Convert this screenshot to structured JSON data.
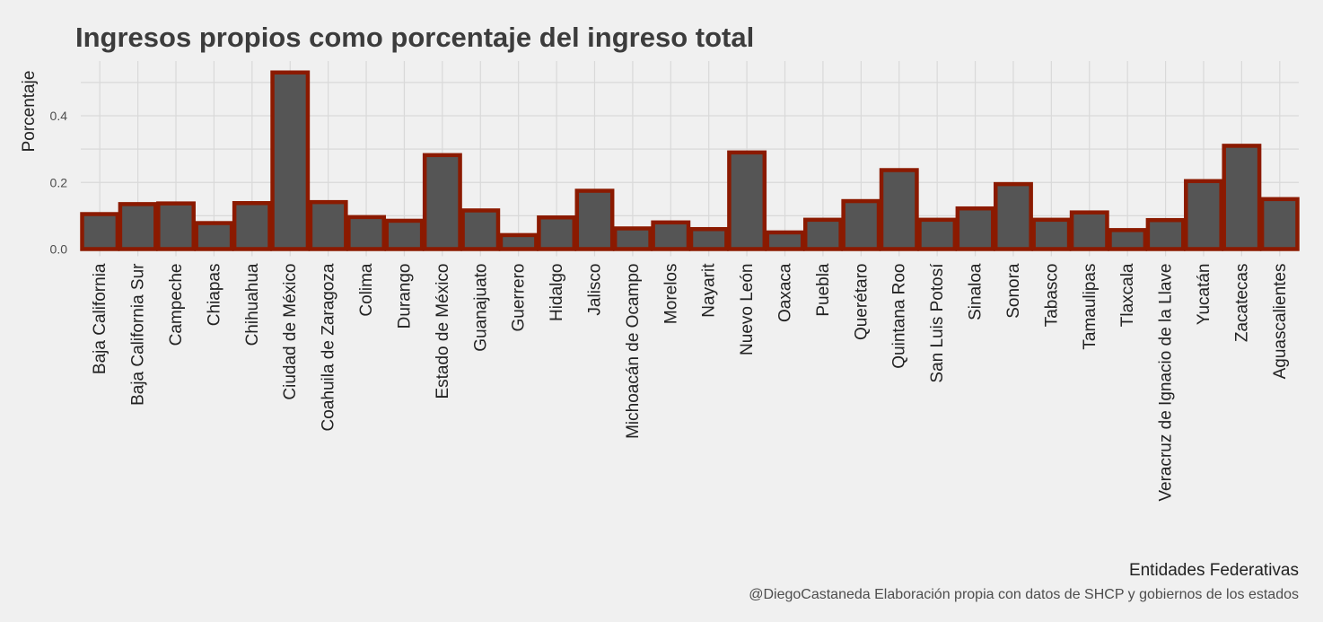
{
  "chart_data": {
    "type": "bar",
    "title": "Ingresos propios como porcentaje del ingreso total",
    "xlabel": "Entidades Federativas",
    "ylabel": "Porcentaje",
    "caption": "@DiegoCastaneda Elaboración propia con datos de SHCP y gobiernos de los estados",
    "ylim": [
      0,
      0.54
    ],
    "yticks": [
      0.0,
      0.2,
      0.4
    ],
    "ytick_labels": [
      "0.0",
      "0.2",
      "0.4"
    ],
    "grid": true,
    "colors": {
      "fill": "#555555",
      "outline": "#8b1a00",
      "background": "#f0f0f0",
      "grid": "#d9d9d9"
    },
    "categories": [
      "Baja California",
      "Baja California Sur",
      "Campeche",
      "Chiapas",
      "Chihuahua",
      "Ciudad de México",
      "Coahuila de Zaragoza",
      "Colima",
      "Durango",
      "Estado de México",
      "Guanajuato",
      "Guerrero",
      "Hidalgo",
      "Jalisco",
      "Michoacán de Ocampo",
      "Morelos",
      "Nayarit",
      "Nuevo León",
      "Oaxaca",
      "Puebla",
      "Querétaro",
      "Quintana Roo",
      "San Luis Potosí",
      "Sinaloa",
      "Sonora",
      "Tabasco",
      "Tamaulipas",
      "Tlaxcala",
      "Veracruz de Ignacio de la Llave",
      "Yucatán",
      "Zacatecas",
      "Aguascalientes"
    ],
    "values": [
      0.105,
      0.135,
      0.137,
      0.078,
      0.138,
      0.53,
      0.141,
      0.096,
      0.085,
      0.282,
      0.116,
      0.042,
      0.095,
      0.175,
      0.062,
      0.08,
      0.06,
      0.29,
      0.05,
      0.088,
      0.144,
      0.237,
      0.088,
      0.122,
      0.195,
      0.088,
      0.11,
      0.057,
      0.087,
      0.204,
      0.31,
      0.15
    ]
  }
}
